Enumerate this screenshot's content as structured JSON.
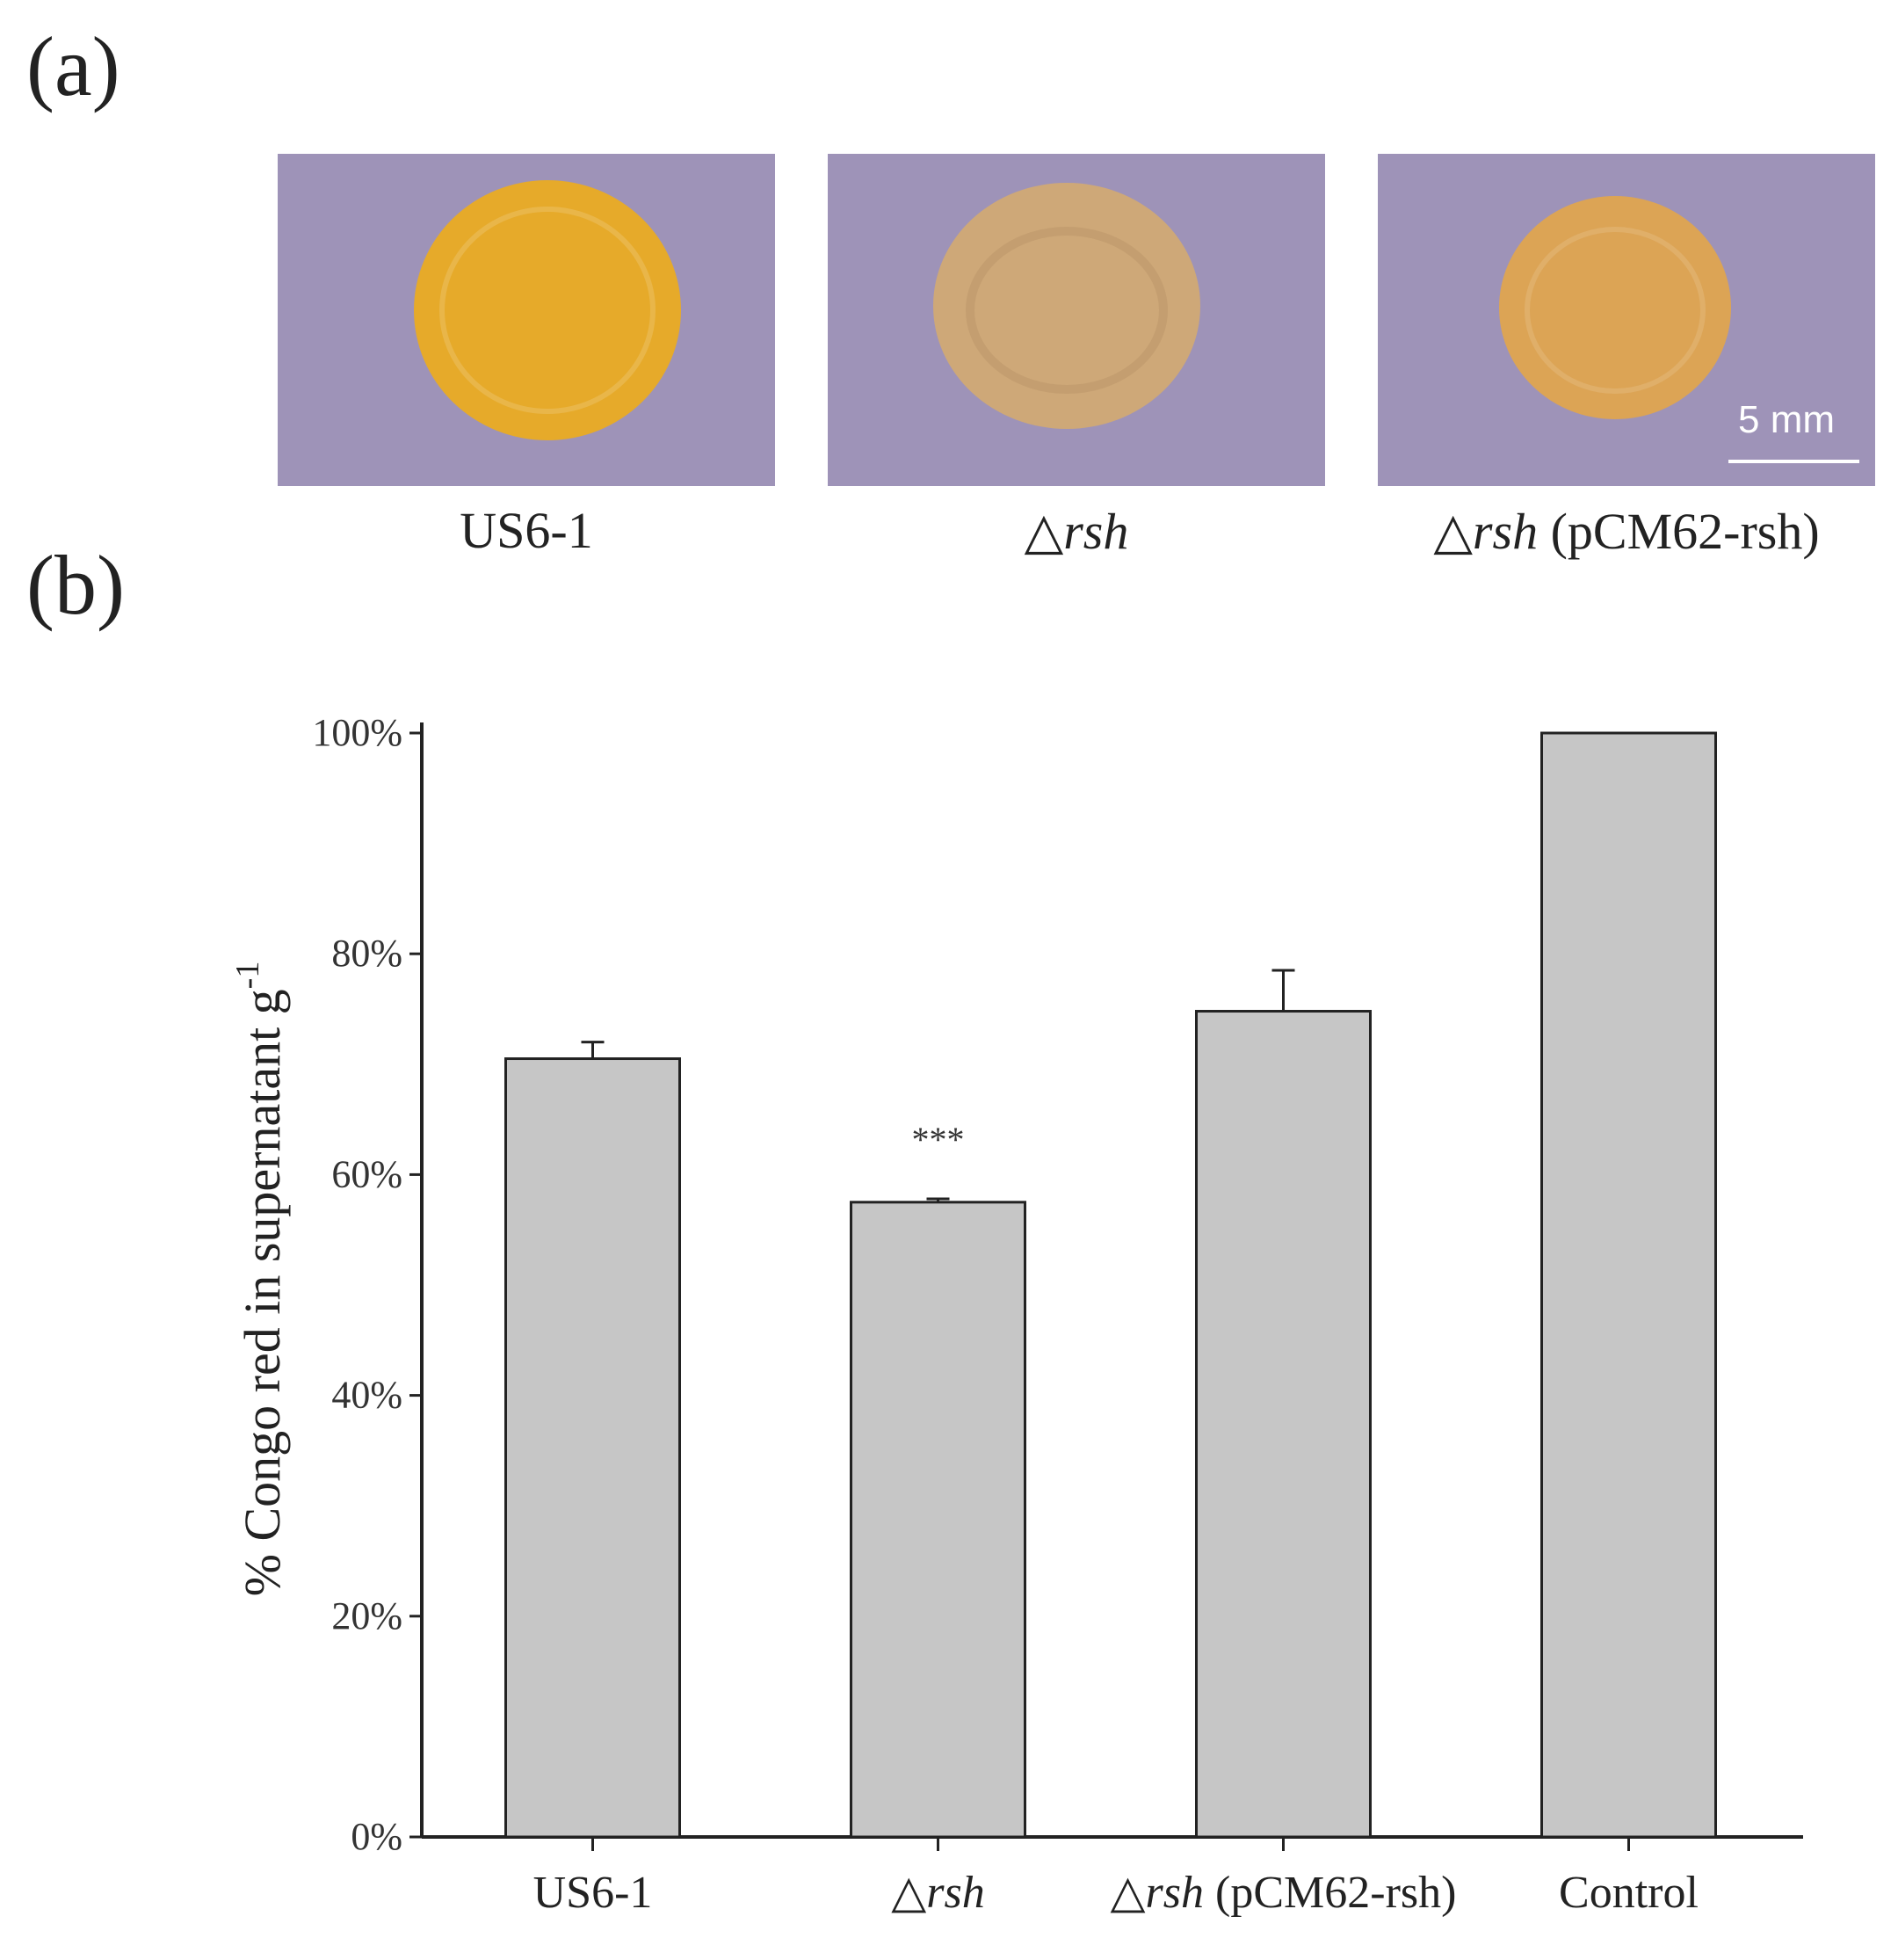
{
  "figure": {
    "panel_a_label": "(a)",
    "panel_b_label": "(b)"
  },
  "photos": {
    "scale_bar_label": "5 mm",
    "captions": [
      {
        "main": "US6-1",
        "italic": "",
        "suffix": ""
      },
      {
        "main": "△",
        "italic": "rsh",
        "suffix": ""
      },
      {
        "main": "△",
        "italic": "rsh",
        "suffix": " (pCM62-rsh)"
      }
    ],
    "colors": {
      "background": "#9e93b8",
      "colony_1": "#e6aa2a",
      "colony_2": "#cea878",
      "colony_3": "#dca455"
    }
  },
  "chart_data": {
    "type": "bar",
    "categories": [
      {
        "prefix": "US6-1",
        "italic": "",
        "suffix": ""
      },
      {
        "prefix": "△",
        "italic": "rsh",
        "suffix": ""
      },
      {
        "prefix": "△",
        "italic": "rsh",
        "suffix": " (pCM62-rsh)"
      },
      {
        "prefix": "Control",
        "italic": "",
        "suffix": ""
      }
    ],
    "values": [
      70.5,
      57.5,
      74.8,
      100
    ],
    "errors": [
      1.5,
      0.3,
      3.7,
      0
    ],
    "significance": [
      "",
      "***",
      "",
      ""
    ],
    "ylabel": "% Congo red in supernatant g",
    "ylabel_superscript": "-1",
    "ylim": [
      0,
      100
    ],
    "yticks": [
      0,
      20,
      40,
      60,
      80,
      100
    ],
    "ytick_labels": [
      "0%",
      "20%",
      "40%",
      "60%",
      "80%",
      "100%"
    ],
    "bar_color": "#c6c6c6",
    "edge_color": "#222222"
  }
}
